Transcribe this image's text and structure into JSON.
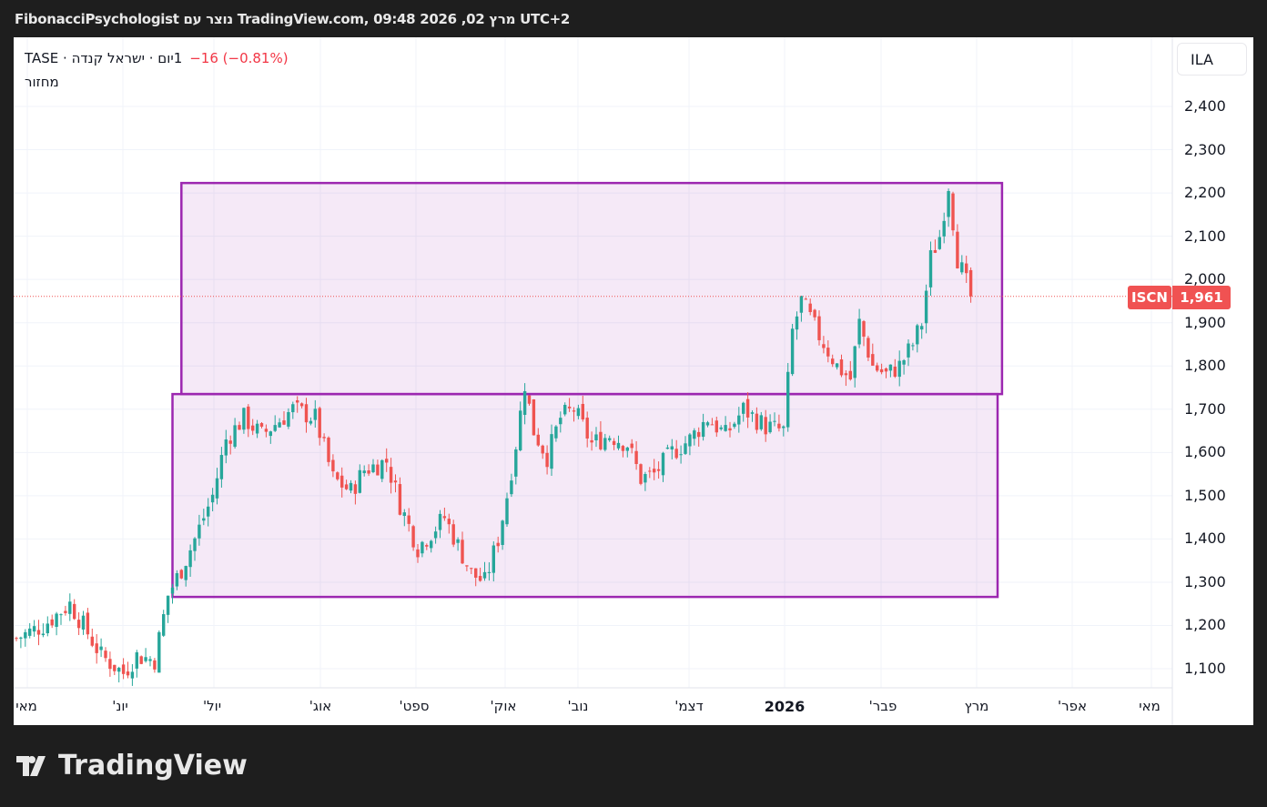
{
  "header": {
    "title": "FibonacciPsychologist נוצר עם TradingView.com, 09:48 2026 ,02 מרץ UTC+2"
  },
  "legend": {
    "symbol_line": "1יום · ישראל קנדה · TASE",
    "change": "−16 (−0.81%)",
    "indicator": "מחזור"
  },
  "price_scale": {
    "currency": "ILA",
    "ticks": [
      "2,400",
      "2,300",
      "2,200",
      "2,100",
      "2,000",
      "1,900",
      "1,800",
      "1,700",
      "1,600",
      "1,500",
      "1,400",
      "1,300",
      "1,200",
      "1,100"
    ]
  },
  "time_axis": {
    "labels": [
      "מאי",
      "יונ'",
      "יול'",
      "אוג'",
      "ספט'",
      "אוק'",
      "נוב'",
      "דצמ'",
      "2026",
      "פבר'",
      "מרץ",
      "אפר'",
      "מאי"
    ]
  },
  "last_price": {
    "ticker": "ISCN",
    "value": "1,961",
    "color": "#f05252"
  },
  "logo": {
    "text": "TradingView"
  },
  "chart_data": {
    "type": "candlestick",
    "ylim": [
      1070,
      2460
    ],
    "up_color": "#26a69a",
    "down_color": "#ef5350",
    "close_waypoints": [
      [
        0,
        1170
      ],
      [
        6,
        1200
      ],
      [
        12,
        1250
      ],
      [
        15,
        1200
      ],
      [
        19,
        1130
      ],
      [
        24,
        1090
      ],
      [
        27,
        1130
      ],
      [
        31,
        1120
      ],
      [
        34,
        1270
      ],
      [
        37,
        1330
      ],
      [
        40,
        1400
      ],
      [
        44,
        1500
      ],
      [
        47,
        1630
      ],
      [
        51,
        1680
      ],
      [
        55,
        1640
      ],
      [
        62,
        1700
      ],
      [
        67,
        1680
      ],
      [
        71,
        1540
      ],
      [
        75,
        1510
      ],
      [
        78,
        1560
      ],
      [
        83,
        1580
      ],
      [
        86,
        1480
      ],
      [
        90,
        1380
      ],
      [
        96,
        1450
      ],
      [
        102,
        1320
      ],
      [
        105,
        1300
      ],
      [
        108,
        1400
      ],
      [
        110,
        1500
      ],
      [
        112,
        1620
      ],
      [
        114,
        1760
      ],
      [
        116,
        1650
      ],
      [
        119,
        1590
      ],
      [
        122,
        1680
      ],
      [
        125,
        1700
      ],
      [
        129,
        1620
      ],
      [
        133,
        1640
      ],
      [
        137,
        1620
      ],
      [
        140,
        1540
      ],
      [
        143,
        1550
      ],
      [
        147,
        1600
      ],
      [
        151,
        1630
      ],
      [
        155,
        1680
      ],
      [
        159,
        1640
      ],
      [
        163,
        1700
      ],
      [
        168,
        1660
      ],
      [
        172,
        1650
      ],
      [
        174,
        1880
      ],
      [
        176,
        1950
      ],
      [
        180,
        1870
      ],
      [
        184,
        1800
      ],
      [
        187,
        1770
      ],
      [
        189,
        1900
      ],
      [
        192,
        1800
      ],
      [
        195,
        1780
      ],
      [
        198,
        1800
      ],
      [
        201,
        1850
      ],
      [
        203,
        1900
      ],
      [
        205,
        2050
      ],
      [
        207,
        2100
      ],
      [
        209,
        2220
      ],
      [
        211,
        2050
      ],
      [
        214,
        1961
      ]
    ],
    "rectangles": [
      {
        "from": 37,
        "to": 221,
        "top": 2223,
        "bottom": 1735
      },
      {
        "from": 35,
        "to": 220,
        "top": 1735,
        "bottom": 1266
      }
    ],
    "rect_color": "#9c27b0"
  }
}
